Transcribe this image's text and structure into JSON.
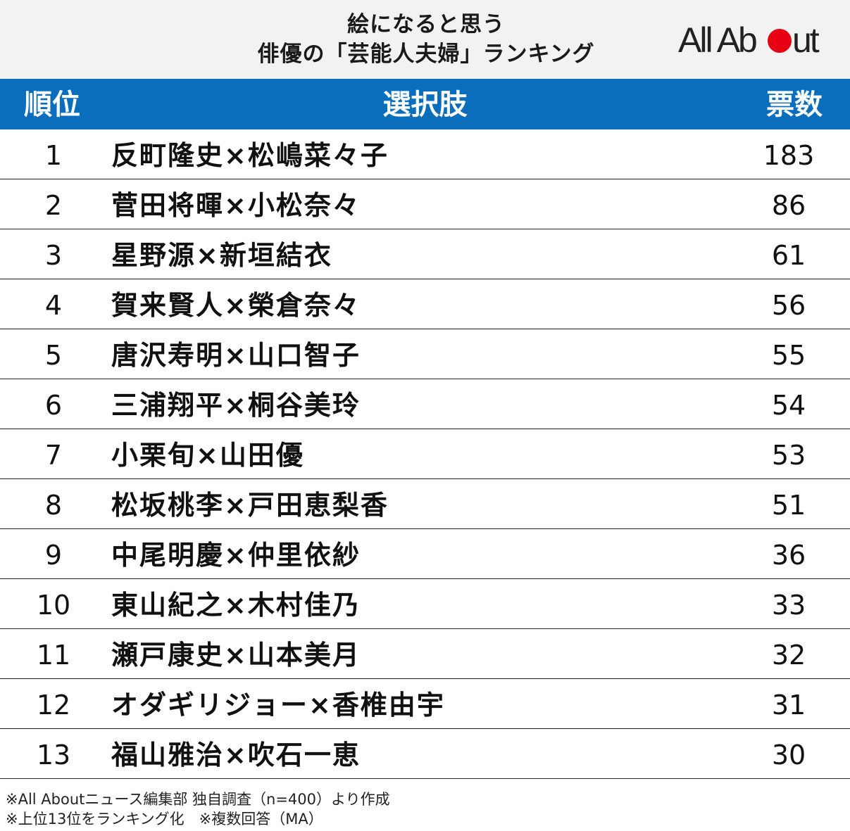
{
  "header": {
    "title_line1": "絵になると思う",
    "title_line2": "俳優の「芸能人夫婦」ランキング",
    "logo_text_prefix": "All Ab",
    "logo_text_suffix": "ut",
    "logo_dot_color": "#e60012"
  },
  "table": {
    "headers": {
      "rank": "順位",
      "choice": "選択肢",
      "votes": "票数"
    },
    "header_color": "#0a6ebd",
    "rows": [
      {
        "rank": "1",
        "choice": "反町隆史×松嶋菜々子",
        "votes": "183"
      },
      {
        "rank": "2",
        "choice": "菅田将暉×小松奈々",
        "votes": "86"
      },
      {
        "rank": "3",
        "choice": "星野源×新垣結衣",
        "votes": "61"
      },
      {
        "rank": "4",
        "choice": "賀来賢人×榮倉奈々",
        "votes": "56"
      },
      {
        "rank": "5",
        "choice": "唐沢寿明×山口智子",
        "votes": "55"
      },
      {
        "rank": "6",
        "choice": "三浦翔平×桐谷美玲",
        "votes": "54"
      },
      {
        "rank": "7",
        "choice": "小栗旬×山田優",
        "votes": "53"
      },
      {
        "rank": "8",
        "choice": "松坂桃李×戸田恵梨香",
        "votes": "51"
      },
      {
        "rank": "9",
        "choice": "中尾明慶×仲里依紗",
        "votes": "36"
      },
      {
        "rank": "10",
        "choice": "東山紀之×木村佳乃",
        "votes": "33"
      },
      {
        "rank": "11",
        "choice": "瀬戸康史×山本美月",
        "votes": "32"
      },
      {
        "rank": "12",
        "choice": "オダギリジョー×香椎由宇",
        "votes": "31"
      },
      {
        "rank": "13",
        "choice": "福山雅治×吹石一恵",
        "votes": "30"
      }
    ]
  },
  "footnotes": {
    "line1": "※All Aboutニュース編集部 独自調査（n=400）より作成",
    "line2": "※上位13位をランキング化　※複数回答（MA）"
  }
}
